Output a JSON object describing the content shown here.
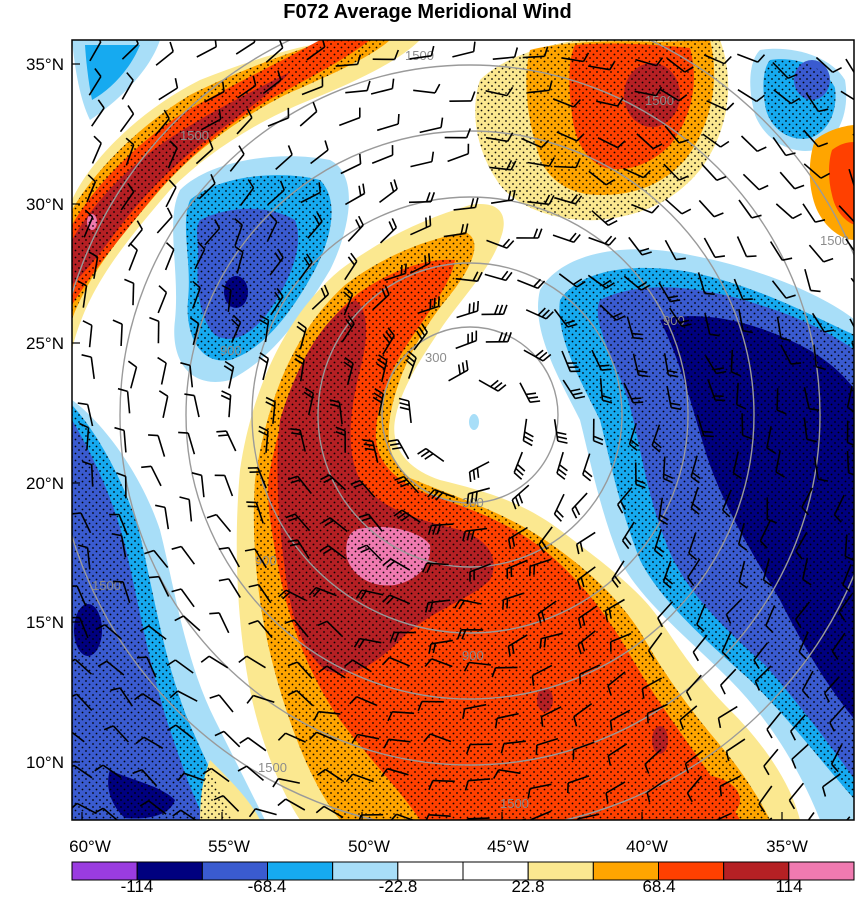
{
  "title": "F072 Average Meridional Wind",
  "lat_labels": [
    "35°N",
    "30°N",
    "25°N",
    "20°N",
    "15°N",
    "10°N"
  ],
  "lon_labels": [
    "60°W",
    "55°W",
    "50°W",
    "45°W",
    "40°W",
    "35°W"
  ],
  "ring_labels": [
    "300",
    "300",
    "900",
    "900",
    "900",
    "900",
    "1500",
    "1500",
    "1500",
    "1500",
    "1500",
    "1500",
    "1500"
  ],
  "colorbar": {
    "colors": [
      "#9a3ce0",
      "#00007f",
      "#3a5bd0",
      "#16aaf0",
      "#a8def8",
      "#ffffff",
      "#ffffff",
      "#fbe890",
      "#ffa500",
      "#ff4000",
      "#b52024",
      "#f07ab0"
    ],
    "labels": [
      "-114",
      "-68.4",
      "-22.8",
      "22.8",
      "68.4",
      "114"
    ]
  },
  "legend_colors": {
    "dark_blue": "#00007f",
    "blue": "#3a5bd0",
    "light_blue": "#16aaf0",
    "pale_blue": "#a8def8",
    "pale_yellow": "#fbe890",
    "orange": "#ffa500",
    "red_orange": "#ff4000",
    "dark_red": "#b52024",
    "pink": "#f07ab0"
  }
}
